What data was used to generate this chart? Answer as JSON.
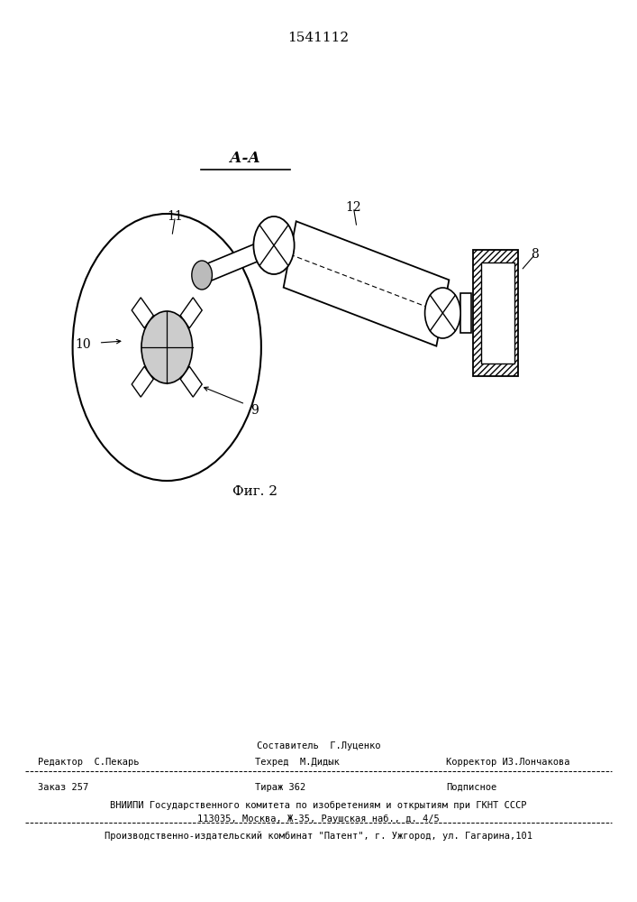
{
  "patent_number": "1541112",
  "fig_label": "Фиг. 2",
  "section_label": "А-А",
  "background_color": "#ffffff",
  "line_color": "#000000",
  "footer": {
    "sostavitel": "Составитель  Г.Луценко",
    "redaktor": "Редактор  С.Пекарь",
    "tehred": "Техред  М.Дидык",
    "korrektor": "Корректор И3.Лончакова",
    "zakaz": "Заказ 257",
    "tirazh": "Тираж 362",
    "podpisnoe": "Подписное",
    "vniipи": "ВНИИПИ Государственного комитета по изобретениям и открытиям при ГКНТ СССР",
    "address": "113035, Москва, Ж-35, Раушская наб., д. 4/5",
    "proizv": "Производственно-издательский комбинат \"Патент\", г. Ужгород, ул. Гагарина,101"
  }
}
